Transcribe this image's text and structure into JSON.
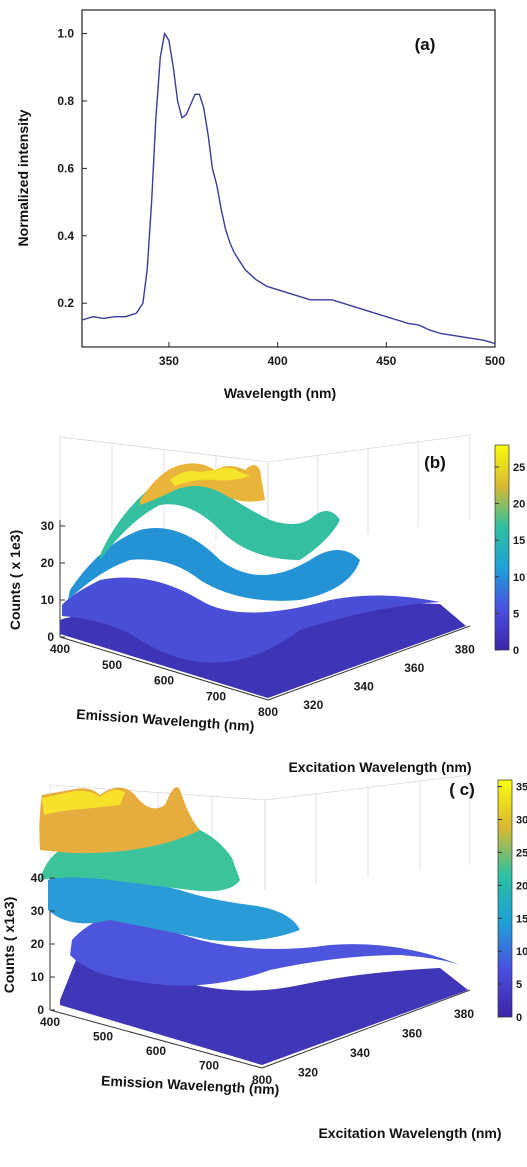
{
  "chart_data": [
    {
      "panel": "(a)",
      "type": "line",
      "xlabel": "Wavelength (nm)",
      "ylabel": "Normalized intensity",
      "xlim": [
        310,
        500
      ],
      "ylim": [
        0.07,
        1.07
      ],
      "xticks": [
        "350",
        "400",
        "450",
        "500"
      ],
      "yticks": [
        "0.2",
        "0.4",
        "0.6",
        "0.8",
        "1.0"
      ],
      "line_color": "#3b3b9e",
      "series": [
        {
          "x": [
            310,
            315,
            320,
            325,
            330,
            335,
            338,
            340,
            342,
            344,
            346,
            348,
            350,
            352,
            354,
            356,
            358,
            360,
            362,
            364,
            366,
            368,
            370,
            372,
            374,
            376,
            378,
            380,
            385,
            390,
            395,
            400,
            405,
            410,
            415,
            420,
            425,
            430,
            435,
            440,
            445,
            450,
            455,
            460,
            465,
            470,
            475,
            480,
            485,
            490,
            495,
            500
          ],
          "y": [
            0.15,
            0.16,
            0.155,
            0.16,
            0.16,
            0.17,
            0.2,
            0.3,
            0.5,
            0.75,
            0.93,
            1.0,
            0.98,
            0.9,
            0.8,
            0.75,
            0.76,
            0.79,
            0.82,
            0.82,
            0.78,
            0.7,
            0.6,
            0.55,
            0.48,
            0.42,
            0.38,
            0.35,
            0.3,
            0.27,
            0.25,
            0.24,
            0.23,
            0.22,
            0.21,
            0.21,
            0.21,
            0.2,
            0.19,
            0.18,
            0.17,
            0.16,
            0.15,
            0.14,
            0.135,
            0.12,
            0.11,
            0.105,
            0.1,
            0.095,
            0.09,
            0.08
          ]
        }
      ]
    },
    {
      "panel": "(b)",
      "type": "surface3d",
      "xlabel": "Emission Wavelength (nm)",
      "ylabel": "Excitation Wavelength (nm)",
      "zlabel": "Counts ( x 1e3)",
      "xticks": [
        "400",
        "500",
        "600",
        "700",
        "800"
      ],
      "yticks": [
        "320",
        "340",
        "360",
        "380"
      ],
      "zticks": [
        "0",
        "10",
        "20",
        "30"
      ],
      "colorbar_ticks": [
        "0",
        "5",
        "10",
        "15",
        "20",
        "25"
      ],
      "colorbar_max": 28,
      "peak": {
        "emission": 420,
        "excitation": 350,
        "counts": 28
      }
    },
    {
      "panel": "( c)",
      "type": "surface3d",
      "xlabel": "Emission Wavelength (nm)",
      "ylabel": "Excitation Wavelength (nm)",
      "zlabel": "Counts ( x1e3)",
      "xticks": [
        "400",
        "500",
        "600",
        "700",
        "800"
      ],
      "yticks": [
        "320",
        "340",
        "360",
        "380"
      ],
      "zticks": [
        "0",
        "10",
        "20",
        "30",
        "40"
      ],
      "colorbar_ticks": [
        "0",
        "5",
        "10",
        "15",
        "20",
        "25",
        "30",
        "35"
      ],
      "colorbar_max": 36,
      "peak": {
        "emission": 420,
        "excitation": 350,
        "counts": 36
      }
    }
  ]
}
